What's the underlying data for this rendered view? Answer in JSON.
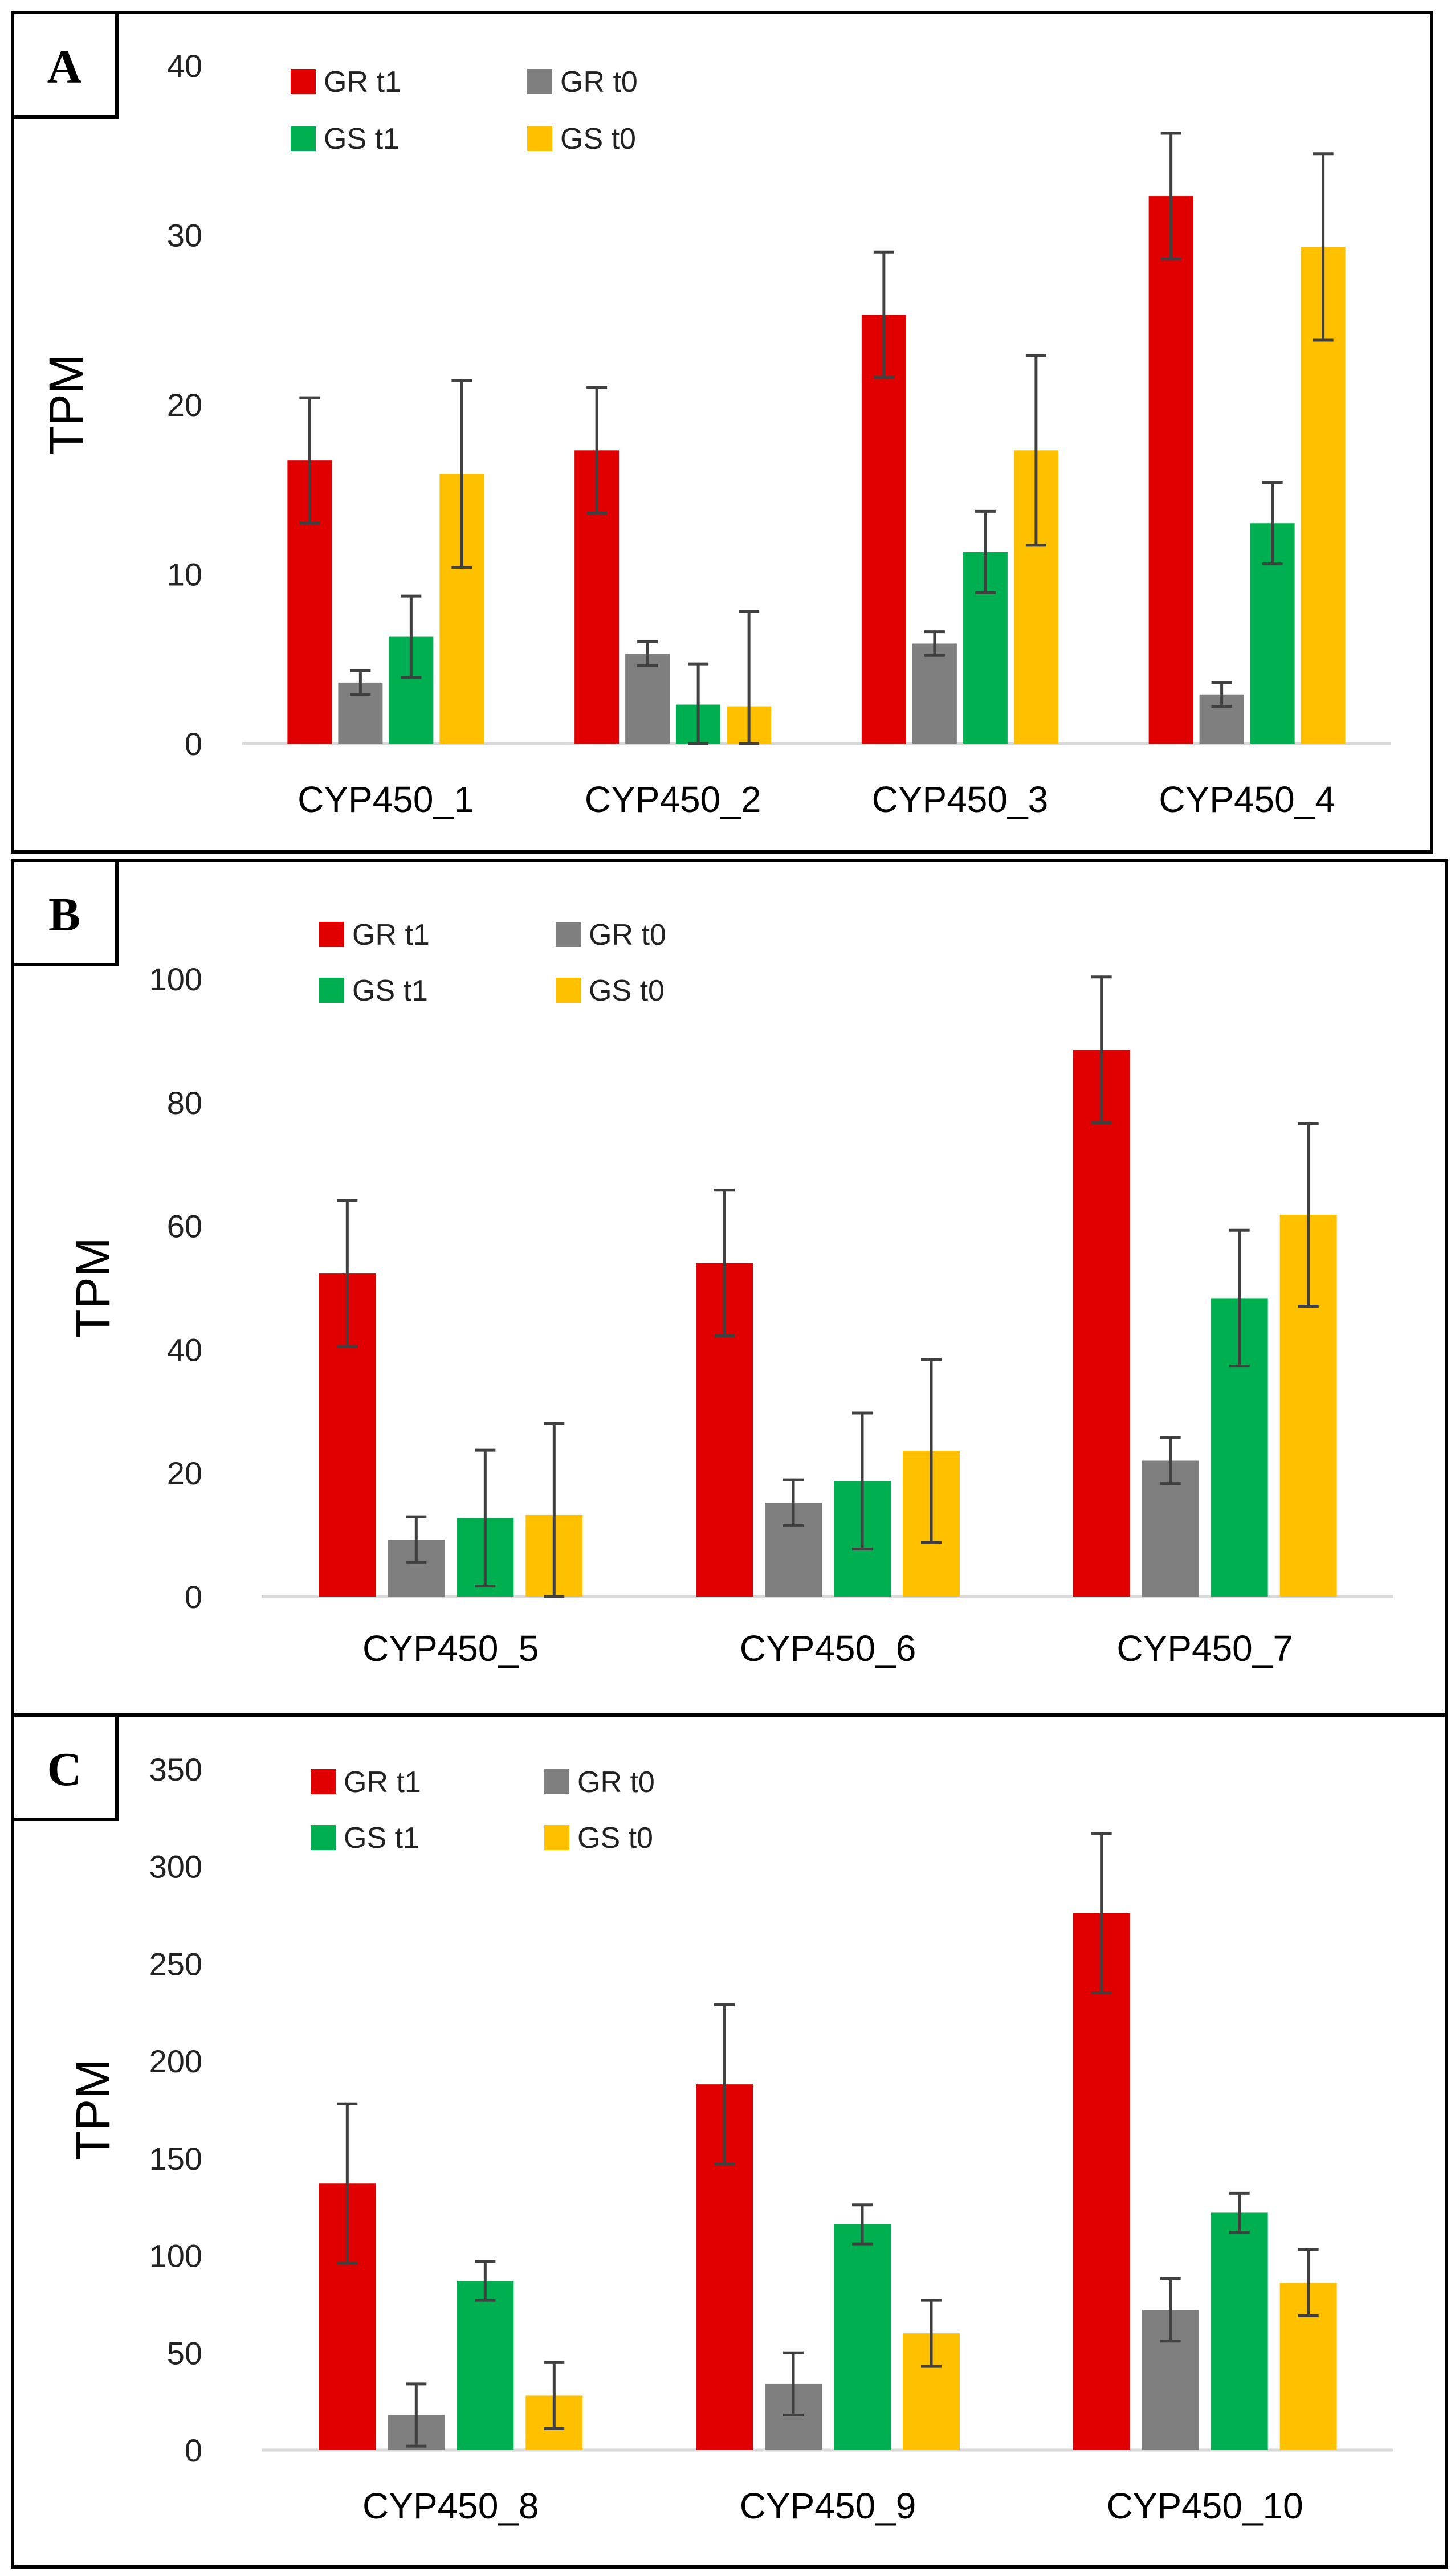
{
  "colors": {
    "GR t1": "#E00000",
    "GR t0": "#7F7F7F",
    "GS t1": "#00B050",
    "GS t0": "#FFC000",
    "error": "#404040"
  },
  "chart_data": [
    {
      "type": "bar",
      "panel": "A",
      "ylabel": "TPM",
      "ylim": [
        0,
        40
      ],
      "yticks": [
        0,
        10,
        20,
        30,
        40
      ],
      "categories": [
        "CYP450_1",
        "CYP450_2",
        "CYP450_3",
        "CYP450_4"
      ],
      "series": [
        {
          "name": "GR t1",
          "values": [
            16.7,
            17.3,
            25.3,
            32.3
          ],
          "errors": [
            3.7,
            3.7,
            3.7,
            3.7
          ]
        },
        {
          "name": "GR t0",
          "values": [
            3.6,
            5.3,
            5.9,
            2.9
          ],
          "errors": [
            0.7,
            0.7,
            0.7,
            0.7
          ]
        },
        {
          "name": "GS t1",
          "values": [
            6.3,
            2.3,
            11.3,
            13.0
          ],
          "errors": [
            2.4,
            2.4,
            2.4,
            2.4
          ]
        },
        {
          "name": "GS t0",
          "values": [
            15.9,
            2.2,
            17.3,
            29.3
          ],
          "errors": [
            5.5,
            5.6,
            5.6,
            5.5
          ]
        }
      ]
    },
    {
      "type": "bar",
      "panel": "B",
      "ylabel": "TPM",
      "ylim": [
        0,
        100
      ],
      "yticks": [
        0,
        20,
        40,
        60,
        80,
        100
      ],
      "categories": [
        "CYP450_5",
        "CYP450_6",
        "CYP450_7"
      ],
      "series": [
        {
          "name": "GR t1",
          "values": [
            52.3,
            54.0,
            88.5
          ],
          "errors": [
            11.8,
            11.8,
            11.8
          ]
        },
        {
          "name": "GR t0",
          "values": [
            9.2,
            15.2,
            22.0
          ],
          "errors": [
            3.7,
            3.7,
            3.7
          ]
        },
        {
          "name": "GS t1",
          "values": [
            12.7,
            18.7,
            48.3
          ],
          "errors": [
            11.0,
            11.0,
            11.0
          ]
        },
        {
          "name": "GS t0",
          "values": [
            13.2,
            23.6,
            61.8
          ],
          "errors": [
            14.8,
            14.8,
            14.8
          ]
        }
      ]
    },
    {
      "type": "bar",
      "panel": "C",
      "ylabel": "TPM",
      "ylim": [
        0,
        350
      ],
      "yticks": [
        0,
        50,
        100,
        150,
        200,
        250,
        300,
        350
      ],
      "categories": [
        "CYP450_8",
        "CYP450_9",
        "CYP450_10"
      ],
      "series": [
        {
          "name": "GR t1",
          "values": [
            137,
            188,
            276
          ],
          "errors": [
            41,
            41,
            41
          ]
        },
        {
          "name": "GR t0",
          "values": [
            18,
            34,
            72
          ],
          "errors": [
            16,
            16,
            16
          ]
        },
        {
          "name": "GS t1",
          "values": [
            87,
            116,
            122
          ],
          "errors": [
            10,
            10,
            10
          ]
        },
        {
          "name": "GS t0",
          "values": [
            28,
            60,
            86
          ],
          "errors": [
            17,
            17,
            17
          ]
        }
      ]
    }
  ]
}
